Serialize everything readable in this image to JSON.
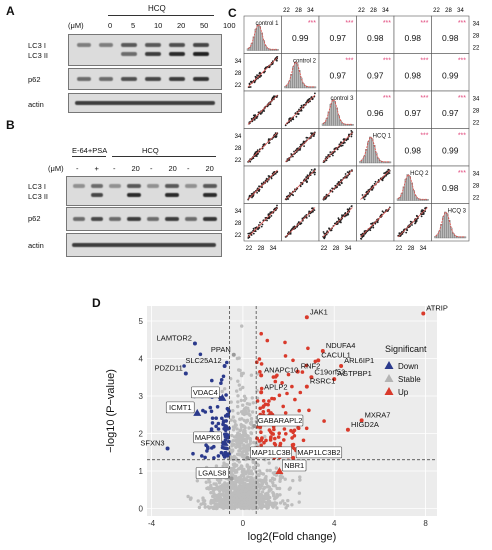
{
  "panelA": {
    "letter": "A",
    "treatment": "HCQ",
    "unit": "(μM)",
    "doses": [
      "0",
      "5",
      "10",
      "20",
      "50",
      "100"
    ],
    "rows": [
      {
        "label1": "LC3 I",
        "label2": "LC3 II"
      },
      {
        "label1": "p62",
        "label2": ""
      },
      {
        "label1": "actin",
        "label2": ""
      }
    ]
  },
  "panelB": {
    "letter": "B",
    "group1": "E-64+PSA",
    "group2": "HCQ",
    "unit": "(μM)",
    "doses": [
      "-",
      "+",
      "-",
      "20",
      "-",
      "20",
      "-",
      "20"
    ],
    "rows": [
      {
        "label1": "LC3 I",
        "label2": "LC3 II"
      },
      {
        "label1": "p62",
        "label2": ""
      },
      {
        "label1": "actin",
        "label2": ""
      }
    ]
  },
  "panelC": {
    "letter": "C",
    "samples": [
      "control 1",
      "control 2",
      "control 3",
      "HCQ 1",
      "HCQ 2",
      "HCQ 3"
    ],
    "tick_labels": [
      "22",
      "28",
      "34"
    ],
    "significance": "***",
    "correlations": [
      [
        null,
        0.99,
        0.97,
        0.98,
        0.98,
        0.98
      ],
      [
        null,
        null,
        0.97,
        0.97,
        0.98,
        0.99
      ],
      [
        null,
        null,
        null,
        0.96,
        0.97,
        0.97
      ],
      [
        null,
        null,
        null,
        null,
        0.98,
        0.99
      ],
      [
        null,
        null,
        null,
        null,
        null,
        0.98
      ]
    ],
    "correlation_text": [
      [
        "",
        "0.99",
        "0.97",
        "0.98",
        "0.98",
        "0.98"
      ],
      [
        "",
        "",
        "0.97",
        "0.97",
        "0.98",
        "0.99"
      ],
      [
        "",
        "",
        "",
        "0.96",
        "0.97",
        "0.97"
      ],
      [
        "",
        "",
        "",
        "",
        "0.98",
        "0.99"
      ],
      [
        "",
        "",
        "",
        "",
        "",
        "0.98"
      ]
    ]
  },
  "chart_data": {
    "type": "scatter",
    "letter": "D",
    "xlabel": "log2(Fold change)",
    "ylabel": "−log10 (P−value)",
    "xlim": [
      -4.2,
      8.5
    ],
    "ylim": [
      -0.2,
      5.4
    ],
    "x_ticks": [
      -4,
      0,
      4,
      8
    ],
    "y_ticks": [
      0,
      1,
      2,
      3,
      4,
      5
    ],
    "thresholds": {
      "x": [
        -0.58,
        0.58
      ],
      "y": 1.3
    },
    "legend": {
      "title": "Significant",
      "entries": [
        {
          "name": "Down",
          "color": "#2b3a8c",
          "shape": "triangle"
        },
        {
          "name": "Stable",
          "color": "#b4b4b4",
          "shape": "triangle"
        },
        {
          "name": "Up",
          "color": "#d93a2b",
          "shape": "triangle"
        }
      ]
    },
    "labeled_points": [
      {
        "name": "ATRIP",
        "x": 7.9,
        "y": 5.2
      },
      {
        "name": "JAK1",
        "x": 2.8,
        "y": 5.1
      },
      {
        "name": "LAMTOR2",
        "x": -2.1,
        "y": 4.4
      },
      {
        "name": "NDUFA4",
        "x": 3.5,
        "y": 4.2
      },
      {
        "name": "PPAN",
        "x": -0.4,
        "y": 4.1
      },
      {
        "name": "CACUL1",
        "x": 3.3,
        "y": 3.95
      },
      {
        "name": "ARL6IP1",
        "x": 4.3,
        "y": 3.8
      },
      {
        "name": "SLC25A12",
        "x": -0.8,
        "y": 3.8
      },
      {
        "name": "RNF2",
        "x": 2.4,
        "y": 3.65
      },
      {
        "name": "ANAPC10",
        "x": 0.8,
        "y": 3.55
      },
      {
        "name": "PDZD11",
        "x": -2.5,
        "y": 3.6
      },
      {
        "name": "C19orf53",
        "x": 3.0,
        "y": 3.5
      },
      {
        "name": "AGTPBP1",
        "x": 4.0,
        "y": 3.45
      },
      {
        "name": "RSRC1",
        "x": 2.8,
        "y": 3.25
      },
      {
        "name": "APLP2",
        "x": 0.8,
        "y": 3.1
      },
      {
        "name": "VDAC4",
        "x": -0.9,
        "y": 2.95
      },
      {
        "name": "ICMT",
        "x": -2.0,
        "y": 2.55
      },
      {
        "name": "MXRA7",
        "x": 5.2,
        "y": 2.35
      },
      {
        "name": "HIGD2A",
        "x": 4.6,
        "y": 2.1
      },
      {
        "name": "MAPK6",
        "x": -0.8,
        "y": 1.75
      },
      {
        "name": "GABARAPL2",
        "x": 0.5,
        "y": 2.2
      },
      {
        "name": "MAP1LC3B",
        "x": 0.2,
        "y": 1.35
      },
      {
        "name": "MAP1LC3B2",
        "x": 2.2,
        "y": 1.35
      },
      {
        "name": "NBR1",
        "x": 1.6,
        "y": 1.0
      },
      {
        "name": "LGALS8",
        "x": -0.5,
        "y": 0.8
      },
      {
        "name": "SFXN3",
        "x": -3.3,
        "y": 1.6
      }
    ],
    "boxed_labels": [
      "VDAC4",
      "ICMT1",
      "MAPK6",
      "GABARAPL2",
      "MAP1LC3B",
      "MAP1LC3B2",
      "NBR1",
      "LGALS8"
    ],
    "box_label_text": {
      "VDAC4": "VDAC4",
      "ICMT": "ICMT1",
      "MAPK6": "MAPK6",
      "GABARAPL2": "GABARAPL2",
      "MAP1LC3B": "MAP1LC3B",
      "MAP1LC3B2": "MAP1LC3B2",
      "NBR1": "NBR1",
      "LGALS8": "LGALS8"
    }
  }
}
